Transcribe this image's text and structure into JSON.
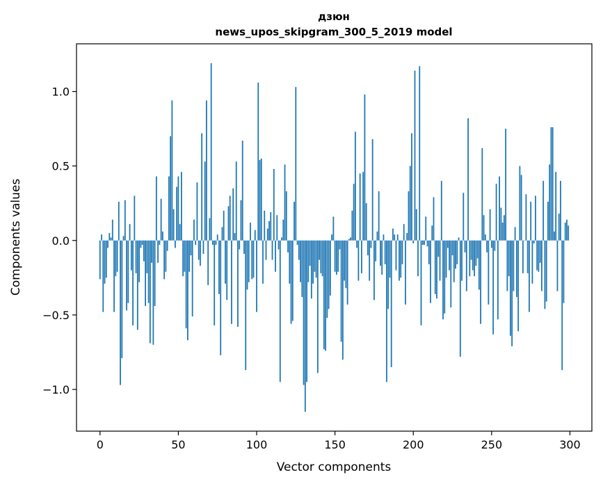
{
  "chart_data": {
    "type": "bar",
    "title": "дзюн",
    "subtitle": "news_upos_skipgram_300_5_2019 model",
    "xlabel": "Vector components",
    "ylabel": "Components values",
    "xlim": [
      -15,
      314
    ],
    "ylim": [
      -1.28,
      1.32
    ],
    "x_ticks": [
      0,
      50,
      100,
      150,
      200,
      250,
      300
    ],
    "y_ticks": [
      -1.0,
      -0.5,
      0.0,
      0.5,
      1.0
    ],
    "x_tick_labels": [
      "0",
      "50",
      "100",
      "150",
      "200",
      "250",
      "300"
    ],
    "y_tick_labels": [
      "−1.0",
      "−0.5",
      "0.0",
      "0.5",
      "1.0"
    ],
    "bar_color": "#1f77b4",
    "grid": false,
    "x": [
      0,
      1,
      2,
      3,
      4,
      5,
      6,
      7,
      8,
      9,
      10,
      11,
      12,
      13,
      14,
      15,
      16,
      17,
      18,
      19,
      20,
      21,
      22,
      23,
      24,
      25,
      26,
      27,
      28,
      29,
      30,
      31,
      32,
      33,
      34,
      35,
      36,
      37,
      38,
      39,
      40,
      41,
      42,
      43,
      44,
      45,
      46,
      47,
      48,
      49,
      50,
      51,
      52,
      53,
      54,
      55,
      56,
      57,
      58,
      59,
      60,
      61,
      62,
      63,
      64,
      65,
      66,
      67,
      68,
      69,
      70,
      71,
      72,
      73,
      74,
      75,
      76,
      77,
      78,
      79,
      80,
      81,
      82,
      83,
      84,
      85,
      86,
      87,
      88,
      89,
      90,
      91,
      92,
      93,
      94,
      95,
      96,
      97,
      98,
      99,
      100,
      101,
      102,
      103,
      104,
      105,
      106,
      107,
      108,
      109,
      110,
      111,
      112,
      113,
      114,
      115,
      116,
      117,
      118,
      119,
      120,
      121,
      122,
      123,
      124,
      125,
      126,
      127,
      128,
      129,
      130,
      131,
      132,
      133,
      134,
      135,
      136,
      137,
      138,
      139,
      140,
      141,
      142,
      143,
      144,
      145,
      146,
      147,
      148,
      149,
      150,
      151,
      152,
      153,
      154,
      155,
      156,
      157,
      158,
      159,
      160,
      161,
      162,
      163,
      164,
      165,
      166,
      167,
      168,
      169,
      170,
      171,
      172,
      173,
      174,
      175,
      176,
      177,
      178,
      179,
      180,
      181,
      182,
      183,
      184,
      185,
      186,
      187,
      188,
      189,
      190,
      191,
      192,
      193,
      194,
      195,
      196,
      197,
      198,
      199,
      200,
      201,
      202,
      203,
      204,
      205,
      206,
      207,
      208,
      209,
      210,
      211,
      212,
      213,
      214,
      215,
      216,
      217,
      218,
      219,
      220,
      221,
      222,
      223,
      224,
      225,
      226,
      227,
      228,
      229,
      230,
      231,
      232,
      233,
      234,
      235,
      236,
      237,
      238,
      239,
      240,
      241,
      242,
      243,
      244,
      245,
      246,
      247,
      248,
      249,
      250,
      251,
      252,
      253,
      254,
      255,
      256,
      257,
      258,
      259,
      260,
      261,
      262,
      263,
      264,
      265,
      266,
      267,
      268,
      269,
      270,
      271,
      272,
      273,
      274,
      275,
      276,
      277,
      278,
      279,
      280,
      281,
      282,
      283,
      284,
      285,
      286,
      287,
      288,
      289,
      290,
      291,
      292,
      293,
      294,
      295,
      296,
      297,
      298,
      299
    ],
    "values": [
      -0.26,
      0.04,
      -0.48,
      -0.29,
      -0.25,
      -0.05,
      0.05,
      0.02,
      0.14,
      -0.48,
      -0.24,
      -0.21,
      0.26,
      -0.97,
      -0.79,
      0.03,
      0.27,
      -0.47,
      -0.42,
      0.11,
      -0.2,
      -0.57,
      0.3,
      -0.22,
      -0.6,
      -0.28,
      -0.05,
      -0.03,
      -0.14,
      -0.44,
      -0.22,
      -0.42,
      -0.69,
      -0.15,
      -0.7,
      -0.44,
      0.43,
      -0.15,
      -0.03,
      0.28,
      0.06,
      -0.26,
      -0.21,
      -0.07,
      0.43,
      0.7,
      0.94,
      0.21,
      -0.05,
      0.36,
      0.43,
      0.11,
      0.46,
      -0.24,
      -0.21,
      -0.59,
      -0.67,
      -0.21,
      -0.1,
      -0.51,
      0.14,
      -0.03,
      0.39,
      -0.13,
      -0.17,
      0.72,
      -0.09,
      0.53,
      0.94,
      -0.3,
      0.15,
      1.19,
      -0.03,
      -0.57,
      -0.03,
      0.04,
      -0.36,
      -0.77,
      0.09,
      0.2,
      -0.29,
      -0.4,
      0.23,
      0.3,
      -0.56,
      0.35,
      0.05,
      0.53,
      -0.58,
      -0.06,
      0.27,
      0.67,
      -0.09,
      -0.87,
      -0.33,
      -0.28,
      0.12,
      -0.26,
      -0.25,
      0.07,
      -0.48,
      1.06,
      0.54,
      0.55,
      -0.29,
      0.2,
      -0.13,
      0.08,
      0.13,
      0.19,
      -0.13,
      0.48,
      -0.21,
      0.17,
      -0.06,
      -0.95,
      0.02,
      0.14,
      0.51,
      0.33,
      -0.08,
      -0.29,
      -0.56,
      -0.54,
      0.26,
      1.03,
      -0.03,
      -0.13,
      -0.28,
      -0.38,
      -0.97,
      -1.15,
      -0.95,
      -0.28,
      -0.17,
      -0.39,
      -0.29,
      -0.21,
      -0.25,
      -0.89,
      -0.13,
      -0.22,
      -0.24,
      -0.73,
      -0.74,
      -0.52,
      -0.46,
      -0.37,
      0.04,
      0.16,
      -0.21,
      -0.23,
      -0.21,
      -0.06,
      -0.68,
      -0.8,
      -0.27,
      -0.32,
      -0.43,
      0.01,
      0.02,
      0.2,
      0.38,
      0.73,
      -0.05,
      -0.27,
      0.45,
      -0.22,
      0.46,
      0.98,
      0.25,
      -0.1,
      -0.27,
      -0.05,
      0.68,
      -0.4,
      -0.14,
      0.06,
      0.33,
      -0.17,
      -0.23,
      0.04,
      -0.16,
      -0.95,
      -0.46,
      -0.25,
      -0.85,
      0.08,
      0.04,
      -0.2,
      0.04,
      -0.27,
      -0.25,
      -0.16,
      0.11,
      -0.43,
      0.05,
      0.33,
      0.5,
      0.72,
      -0.02,
      1.14,
      0.21,
      -0.24,
      1.17,
      -0.57,
      -0.03,
      -0.03,
      0.16,
      -0.04,
      -0.16,
      -0.42,
      0.1,
      0.29,
      -0.36,
      -0.39,
      -0.11,
      -0.27,
      0.4,
      -0.53,
      -0.49,
      -0.25,
      -0.05,
      -0.2,
      -0.45,
      -0.1,
      -0.28,
      -0.19,
      -0.16,
      0.02,
      -0.78,
      -0.27,
      0.32,
      -0.08,
      -0.34,
      0.82,
      -0.24,
      -0.13,
      -0.2,
      -0.24,
      -0.17,
      -0.12,
      -0.33,
      -0.56,
      0.62,
      0.17,
      0.04,
      -0.08,
      -0.43,
      0.21,
      -0.05,
      -0.63,
      -0.07,
      0.38,
      -0.53,
      0.43,
      0.22,
      0.12,
      0.17,
      0.75,
      -0.34,
      -0.24,
      -0.64,
      -0.71,
      -0.34,
      0.09,
      -0.38,
      -0.61,
      0.5,
      0.44,
      -0.22,
      0.0,
      0.31,
      -0.22,
      -0.48,
      0.26,
      -0.29,
      -0.02,
      0.3,
      -0.2,
      -0.21,
      -0.15,
      -0.34,
      0.4,
      -0.46,
      -0.41,
      0.26,
      0.51,
      0.76,
      0.76,
      0.06,
      0.46,
      -0.34,
      0.18,
      0.4,
      -0.87,
      -0.42,
      0.12,
      0.14,
      0.1
    ]
  }
}
